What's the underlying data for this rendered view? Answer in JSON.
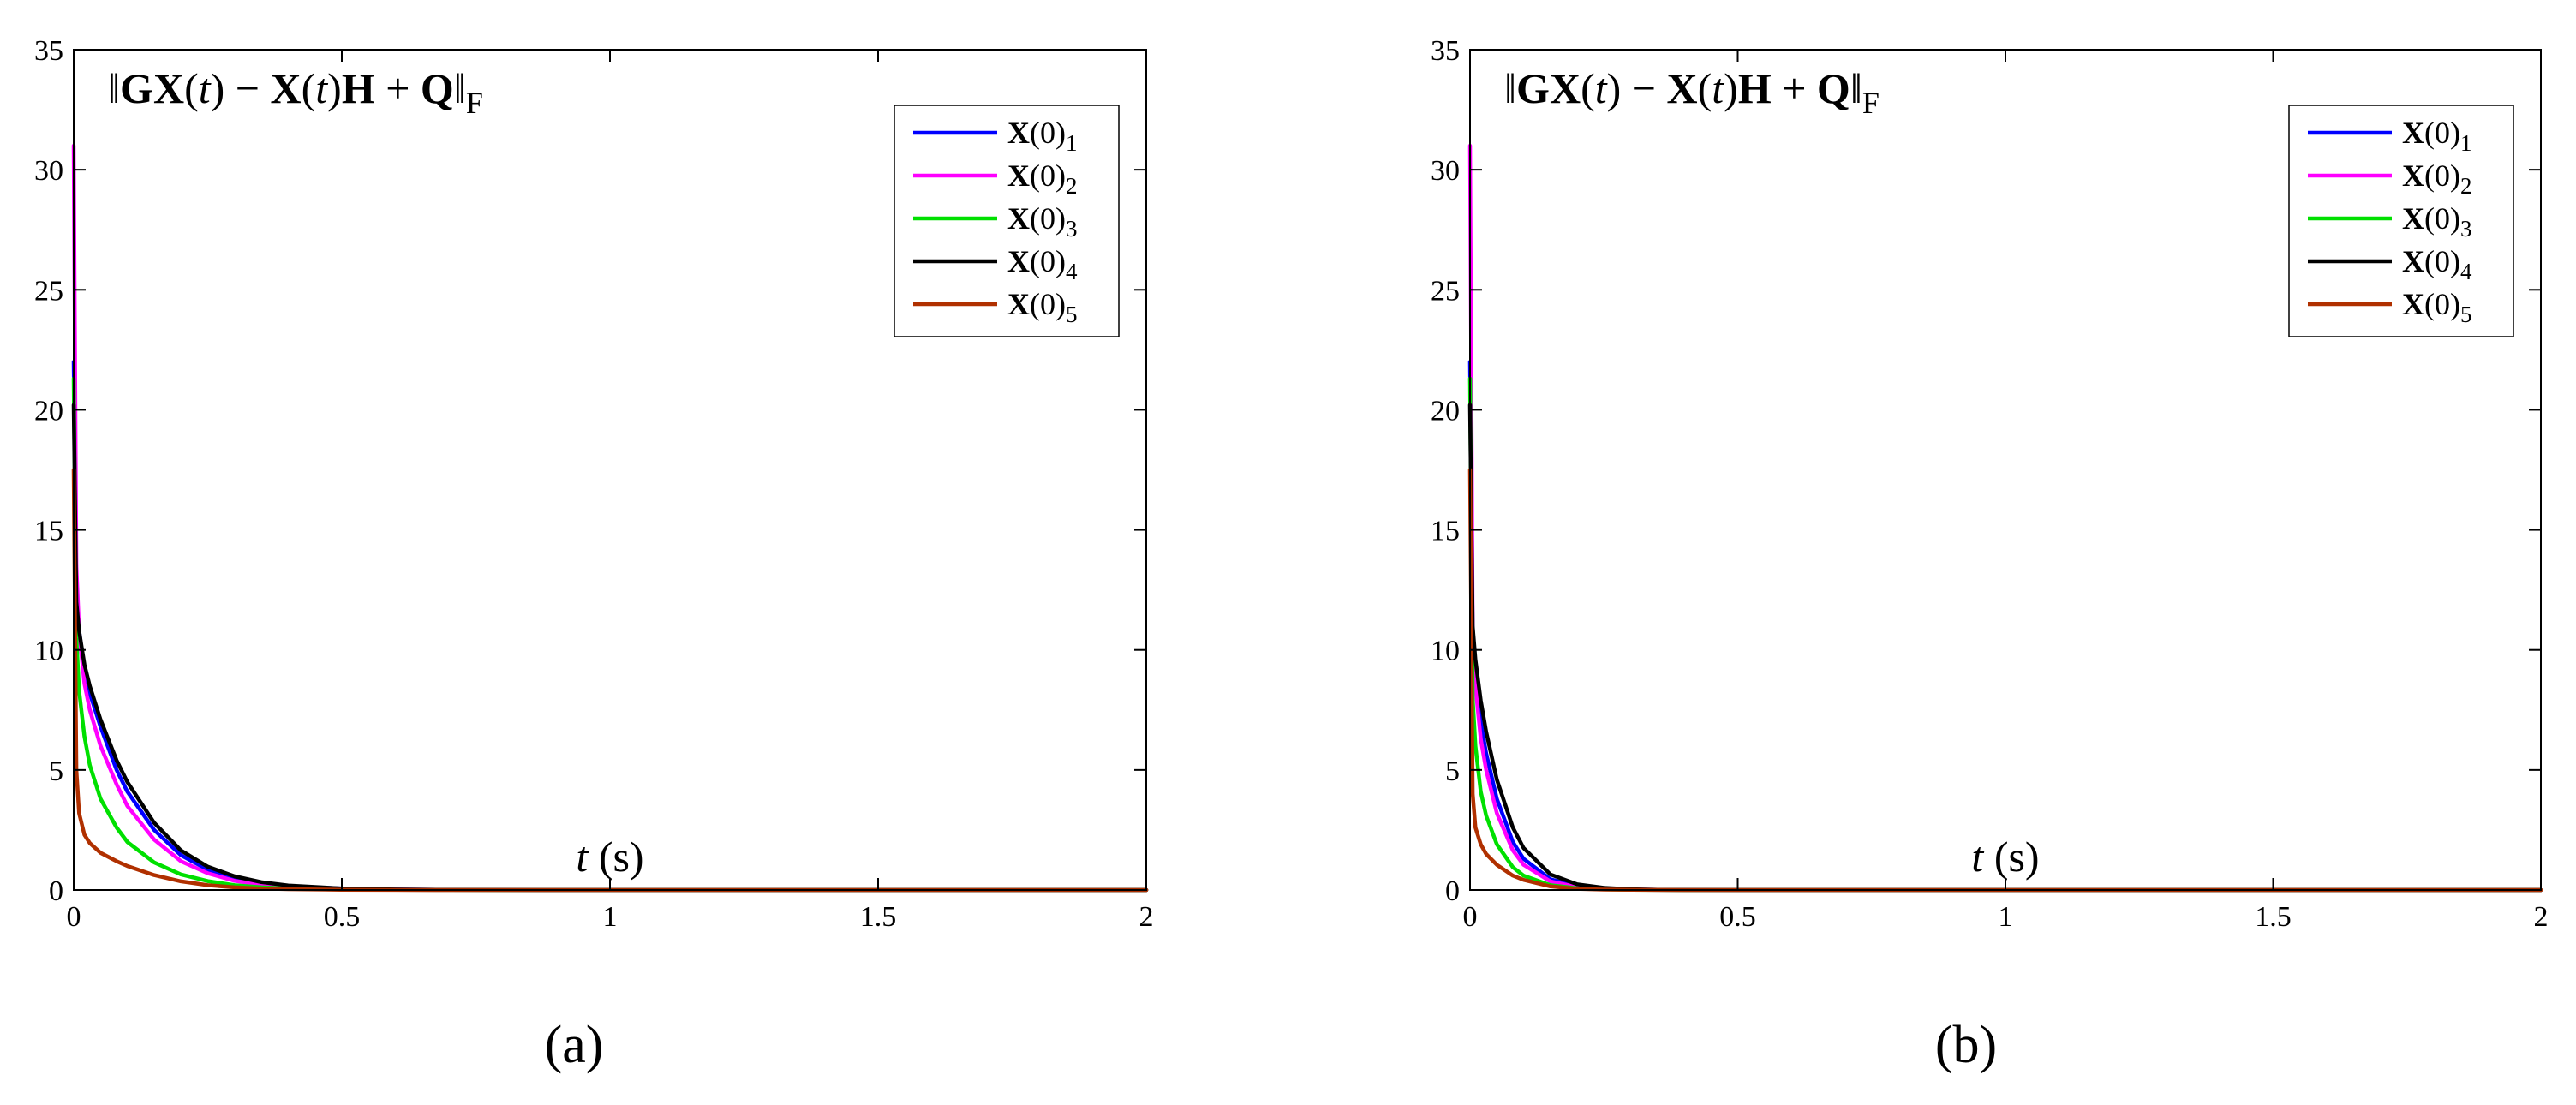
{
  "chart_data": [
    {
      "type": "line",
      "panel_label": "(a)",
      "annotation": "‖GX(t) − X(t)H + Q‖F",
      "xlabel": "t (s)",
      "ylabel": "",
      "xlim": [
        0,
        2
      ],
      "ylim": [
        0,
        35
      ],
      "xticks": [
        0,
        0.5,
        1,
        1.5,
        2
      ],
      "xtick_labels": [
        "0",
        "0.5",
        "1",
        "1.5",
        "2"
      ],
      "yticks": [
        0,
        5,
        10,
        15,
        20,
        25,
        30,
        35
      ],
      "ytick_labels": [
        "0",
        "5",
        "10",
        "15",
        "20",
        "25",
        "30",
        "35"
      ],
      "grid": false,
      "legend_position": "top-right",
      "x": [
        0,
        0.005,
        0.01,
        0.02,
        0.03,
        0.05,
        0.08,
        0.1,
        0.15,
        0.2,
        0.25,
        0.3,
        0.35,
        0.4,
        0.5,
        0.6,
        0.7,
        0.8,
        1,
        1.5,
        2
      ],
      "series": [
        {
          "name": "X(0)1",
          "color": "#0000ff",
          "values": [
            22,
            12.5,
            10.8,
            9.2,
            8.2,
            6.8,
            5.0,
            4.1,
            2.5,
            1.45,
            0.85,
            0.5,
            0.3,
            0.17,
            0.06,
            0.02,
            0.007,
            0.003,
            0,
            0,
            0
          ]
        },
        {
          "name": "X(0)2",
          "color": "#ff00ff",
          "values": [
            31,
            13.5,
            10.8,
            8.6,
            7.5,
            6.0,
            4.4,
            3.5,
            2.1,
            1.2,
            0.7,
            0.38,
            0.22,
            0.12,
            0.04,
            0.012,
            0.004,
            0.002,
            0,
            0,
            0
          ]
        },
        {
          "name": "X(0)3",
          "color": "#00e000",
          "values": [
            21.3,
            10.5,
            8.3,
            6.4,
            5.2,
            3.8,
            2.6,
            2.0,
            1.15,
            0.65,
            0.37,
            0.2,
            0.11,
            0.06,
            0.02,
            0.006,
            0.002,
            0,
            0,
            0,
            0
          ]
        },
        {
          "name": "X(0)4",
          "color": "#000000",
          "values": [
            20.2,
            12.0,
            10.8,
            9.4,
            8.5,
            7.1,
            5.4,
            4.5,
            2.8,
            1.65,
            0.97,
            0.57,
            0.33,
            0.19,
            0.065,
            0.022,
            0.008,
            0.003,
            0,
            0,
            0
          ]
        },
        {
          "name": "X(0)5",
          "color": "#b03000",
          "values": [
            17.5,
            5.0,
            3.2,
            2.3,
            1.95,
            1.55,
            1.2,
            1.0,
            0.62,
            0.36,
            0.2,
            0.11,
            0.06,
            0.035,
            0.012,
            0.004,
            0.001,
            0,
            0,
            0,
            0
          ]
        }
      ]
    },
    {
      "type": "line",
      "panel_label": "(b)",
      "annotation": "‖GX(t) − X(t)H + Q‖F",
      "xlabel": "t (s)",
      "ylabel": "",
      "xlim": [
        0,
        2
      ],
      "ylim": [
        0,
        35
      ],
      "xticks": [
        0,
        0.5,
        1,
        1.5,
        2
      ],
      "xtick_labels": [
        "0",
        "0.5",
        "1",
        "1.5",
        "2"
      ],
      "yticks": [
        0,
        5,
        10,
        15,
        20,
        25,
        30,
        35
      ],
      "ytick_labels": [
        "0",
        "5",
        "10",
        "15",
        "20",
        "25",
        "30",
        "35"
      ],
      "grid": false,
      "legend_position": "top-right",
      "x": [
        0,
        0.005,
        0.01,
        0.02,
        0.03,
        0.05,
        0.08,
        0.1,
        0.15,
        0.2,
        0.25,
        0.3,
        0.35,
        0.4,
        0.5,
        0.6,
        0.7,
        0.8,
        1,
        1.5,
        2
      ],
      "series": [
        {
          "name": "X(0)1",
          "color": "#0000ff",
          "values": [
            22,
            10.5,
            8.8,
            7.0,
            5.7,
            3.8,
            2.0,
            1.3,
            0.45,
            0.16,
            0.055,
            0.02,
            0.007,
            0.002,
            0,
            0,
            0,
            0,
            0,
            0,
            0
          ]
        },
        {
          "name": "X(0)2",
          "color": "#ff00ff",
          "values": [
            31,
            11.0,
            8.5,
            6.3,
            5.0,
            3.2,
            1.65,
            1.05,
            0.36,
            0.12,
            0.04,
            0.014,
            0.005,
            0.002,
            0,
            0,
            0,
            0,
            0,
            0,
            0
          ]
        },
        {
          "name": "X(0)3",
          "color": "#00e000",
          "values": [
            21.3,
            8.0,
            6.0,
            4.1,
            3.1,
            1.9,
            0.95,
            0.6,
            0.2,
            0.07,
            0.024,
            0.008,
            0.003,
            0.001,
            0,
            0,
            0,
            0,
            0,
            0,
            0
          ]
        },
        {
          "name": "X(0)4",
          "color": "#000000",
          "values": [
            20.2,
            11.0,
            9.6,
            7.9,
            6.6,
            4.6,
            2.6,
            1.75,
            0.65,
            0.24,
            0.09,
            0.033,
            0.012,
            0.004,
            0,
            0,
            0,
            0,
            0,
            0,
            0
          ]
        },
        {
          "name": "X(0)5",
          "color": "#b03000",
          "values": [
            17.5,
            4.0,
            2.6,
            1.9,
            1.5,
            1.05,
            0.6,
            0.42,
            0.15,
            0.05,
            0.018,
            0.006,
            0.002,
            0.001,
            0,
            0,
            0,
            0,
            0,
            0,
            0
          ]
        }
      ]
    }
  ]
}
